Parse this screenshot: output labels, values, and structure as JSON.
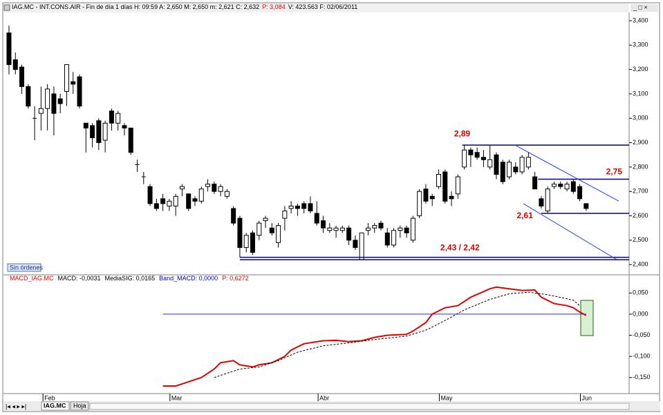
{
  "header": [
    {
      "text": "IAG.MC - INT.CONS.AIR - Fin de día 1 días  H: 09:59  A: 2,650  M: 2,650  m: 2,621  C: 2,632",
      "color": "#000000"
    },
    {
      "text": "P: 3,084",
      "color": "#e00000"
    },
    {
      "text": "V: 423.563  F: 02/06/2011",
      "color": "#000000"
    }
  ],
  "button": "Sin órdenes",
  "tabs": [
    "IAG.MC",
    "Hoja"
  ],
  "chart_data": [
    {
      "type": "candlestick",
      "xlim": [
        -0.86,
        96.7
      ],
      "xticks": [
        {
          "value": 5.3,
          "label": "Feb"
        },
        {
          "value": 25.1,
          "label": "Mar"
        },
        {
          "value": 48.2,
          "label": "Abr"
        },
        {
          "value": 67.1,
          "label": "May"
        },
        {
          "value": 89.1,
          "label": "Jun"
        }
      ],
      "ylim": [
        2.358,
        3.434
      ],
      "yticks": [
        {
          "value": 2.4,
          "label": "2,400"
        },
        {
          "value": 2.5,
          "label": "2,500"
        },
        {
          "value": 2.6,
          "label": "2,600"
        },
        {
          "value": 2.7,
          "label": "2,700"
        },
        {
          "value": 2.8,
          "label": "2,800"
        },
        {
          "value": 2.9,
          "label": "2,900"
        },
        {
          "value": 3.0,
          "label": "3,000"
        },
        {
          "value": 3.1,
          "label": "3,100"
        },
        {
          "value": 3.2,
          "label": "3,200"
        },
        {
          "value": 3.3,
          "label": "3,300"
        },
        {
          "value": 3.4,
          "label": "3,400"
        }
      ],
      "up_color": "#ffffff",
      "down_color": "#000000",
      "open": [
        3.35,
        3.24,
        3.21,
        3.13,
        3.0,
        3.02,
        3.04,
        3.1,
        3.08,
        3.11,
        3.15,
        3.17,
        2.98,
        2.97,
        2.99,
        2.91,
        3.03,
        2.98,
        2.97,
        2.96,
        2.81,
        2.76,
        2.72,
        2.65,
        2.67,
        2.64,
        2.64,
        2.71,
        2.69,
        2.67,
        2.66,
        2.72,
        2.73,
        2.7,
        2.68,
        2.63,
        2.59,
        2.47,
        2.53,
        2.52,
        2.58,
        2.55,
        2.49,
        2.59,
        2.63,
        2.64,
        2.65,
        2.65,
        2.61,
        2.58,
        2.54,
        2.54,
        2.54,
        2.55,
        2.5,
        2.42,
        2.54,
        2.55,
        2.57,
        2.53,
        2.48,
        2.54,
        2.55,
        2.5,
        2.6,
        2.71,
        2.68,
        2.72,
        2.78,
        2.68,
        2.69,
        2.8,
        2.87,
        2.86,
        2.84,
        2.8,
        2.85,
        2.82,
        2.76,
        2.8,
        2.78,
        2.8,
        2.76,
        2.67,
        2.62,
        2.72,
        2.73,
        2.71,
        2.74,
        2.72,
        2.65
      ],
      "high": [
        3.38,
        3.27,
        3.22,
        3.14,
        3.05,
        3.13,
        3.14,
        3.13,
        3.1,
        3.22,
        3.19,
        3.18,
        2.98,
        2.98,
        3.0,
        2.99,
        3.04,
        3.03,
        2.98,
        2.96,
        2.83,
        2.78,
        2.73,
        2.67,
        2.69,
        2.67,
        2.69,
        2.73,
        2.69,
        2.68,
        2.72,
        2.75,
        2.74,
        2.73,
        2.71,
        2.64,
        2.6,
        2.53,
        2.54,
        2.58,
        2.6,
        2.57,
        2.57,
        2.64,
        2.66,
        2.65,
        2.66,
        2.68,
        2.66,
        2.6,
        2.57,
        2.56,
        2.56,
        2.56,
        2.52,
        2.53,
        2.57,
        2.57,
        2.58,
        2.55,
        2.55,
        2.56,
        2.56,
        2.6,
        2.71,
        2.73,
        2.69,
        2.79,
        2.79,
        2.7,
        2.77,
        2.89,
        2.88,
        2.88,
        2.87,
        2.89,
        2.86,
        2.83,
        2.83,
        2.82,
        2.85,
        2.86,
        2.78,
        2.68,
        2.72,
        2.74,
        2.74,
        2.74,
        2.75,
        2.73,
        2.65
      ],
      "low": [
        3.18,
        3.18,
        3.1,
        3.04,
        2.91,
        2.95,
        2.95,
        2.93,
        3.02,
        3.05,
        3.1,
        3.04,
        2.86,
        2.88,
        2.87,
        2.86,
        2.95,
        2.95,
        2.93,
        2.85,
        2.78,
        2.73,
        2.64,
        2.62,
        2.62,
        2.62,
        2.6,
        2.68,
        2.62,
        2.64,
        2.65,
        2.7,
        2.69,
        2.68,
        2.67,
        2.56,
        2.43,
        2.45,
        2.44,
        2.5,
        2.55,
        2.52,
        2.47,
        2.54,
        2.61,
        2.6,
        2.61,
        2.61,
        2.56,
        2.53,
        2.53,
        2.51,
        2.53,
        2.48,
        2.46,
        2.42,
        2.52,
        2.53,
        2.54,
        2.47,
        2.47,
        2.51,
        2.51,
        2.49,
        2.59,
        2.65,
        2.64,
        2.71,
        2.65,
        2.64,
        2.67,
        2.79,
        2.8,
        2.83,
        2.8,
        2.79,
        2.75,
        2.73,
        2.75,
        2.77,
        2.77,
        2.79,
        2.71,
        2.63,
        2.61,
        2.71,
        2.71,
        2.7,
        2.69,
        2.66,
        2.62
      ],
      "close": [
        3.22,
        3.2,
        3.13,
        3.05,
        3.0,
        3.04,
        3.12,
        3.02,
        3.06,
        3.22,
        3.14,
        3.05,
        2.96,
        2.92,
        2.9,
        2.98,
        2.98,
        3.02,
        2.96,
        2.86,
        2.81,
        2.76,
        2.65,
        2.63,
        2.65,
        2.66,
        2.68,
        2.72,
        2.63,
        2.66,
        2.71,
        2.73,
        2.7,
        2.72,
        2.7,
        2.57,
        2.47,
        2.52,
        2.45,
        2.57,
        2.59,
        2.53,
        2.56,
        2.62,
        2.64,
        2.63,
        2.63,
        2.62,
        2.57,
        2.55,
        2.55,
        2.55,
        2.55,
        2.5,
        2.47,
        2.53,
        2.55,
        2.56,
        2.55,
        2.48,
        2.54,
        2.55,
        2.53,
        2.59,
        2.7,
        2.66,
        2.67,
        2.77,
        2.66,
        2.67,
        2.76,
        2.87,
        2.85,
        2.84,
        2.83,
        2.83,
        2.77,
        2.74,
        2.82,
        2.78,
        2.84,
        2.84,
        2.71,
        2.64,
        2.71,
        2.73,
        2.72,
        2.73,
        2.7,
        2.67,
        2.63
      ],
      "levels": [
        {
          "values": [
            2.89
          ],
          "label": "2,89",
          "start": 70.7
        },
        {
          "values": [
            2.75
          ],
          "label": "2,75",
          "start": 82.5
        },
        {
          "values": [
            2.61
          ],
          "label": "2,61",
          "start": 83
        },
        {
          "values": [
            2.43,
            2.42
          ],
          "label": "2,43 / 2,42",
          "start": 36
        }
      ],
      "level_color": "#00008b",
      "label_color": "#e00000",
      "trendlines": [
        {
          "x": [
            78.9,
            95.1
          ],
          "values": [
            2.89,
            2.66
          ]
        },
        {
          "x": [
            80.2,
            94.8
          ],
          "values": [
            2.65,
            2.42
          ]
        }
      ],
      "trend_color": "#1e3cff"
    },
    {
      "type": "line",
      "header": [
        {
          "text": "MACD_IAG.MC",
          "color": "#e00000"
        },
        {
          "text": "MACD: -0,0031",
          "color": "#000000"
        },
        {
          "text": "MediaSIG: 0,0165",
          "color": "#000000"
        },
        {
          "text": "Band_MACD: 0,0000",
          "color": "#0000cc"
        },
        {
          "text": "P: 0,6272",
          "color": "#e00000"
        }
      ],
      "xlim": [
        -0.86,
        96.7
      ],
      "ylim": [
        -0.188,
        0.093
      ],
      "yticks": [
        {
          "value": 0.05,
          "label": "0,050"
        },
        {
          "value": 0,
          "label": "0,000"
        },
        {
          "value": -0.05,
          "label": "-0,050"
        },
        {
          "value": -0.1,
          "label": "-0,100"
        },
        {
          "value": -0.15,
          "label": "-0,150"
        }
      ],
      "band": {
        "value": 0,
        "x": [
          24,
          90
        ],
        "color": "#2030c0"
      },
      "series": [
        {
          "color": "#e00000",
          "dash": false,
          "x": [
            24,
            26,
            28,
            30,
            32,
            33,
            35,
            36,
            38,
            39,
            41,
            43,
            44,
            46,
            49,
            51,
            53,
            55,
            57,
            59,
            62,
            63,
            65,
            66,
            68,
            70,
            72,
            75,
            76,
            78,
            80,
            82,
            83,
            85,
            87,
            88,
            89,
            90
          ],
          "values": [
            -0.17,
            -0.17,
            -0.16,
            -0.15,
            -0.13,
            -0.115,
            -0.11,
            -0.12,
            -0.125,
            -0.12,
            -0.115,
            -0.1,
            -0.085,
            -0.07,
            -0.063,
            -0.062,
            -0.065,
            -0.063,
            -0.055,
            -0.05,
            -0.048,
            -0.04,
            -0.02,
            0,
            0.015,
            0.02,
            0.04,
            0.06,
            0.064,
            0.06,
            0.056,
            0.057,
            0.04,
            0.025,
            0.02,
            0.015,
            0.005,
            -0.003
          ]
        },
        {
          "color": "#000000",
          "dash": true,
          "x": [
            32,
            36,
            39,
            42,
            45,
            49,
            53,
            57,
            62,
            65,
            68,
            71,
            75,
            78,
            81,
            84,
            88,
            89
          ],
          "values": [
            -0.15,
            -0.13,
            -0.125,
            -0.11,
            -0.09,
            -0.075,
            -0.068,
            -0.06,
            -0.052,
            -0.038,
            -0.015,
            0.01,
            0.035,
            0.048,
            0.052,
            0.046,
            0.033,
            0.02
          ]
        }
      ]
    }
  ]
}
